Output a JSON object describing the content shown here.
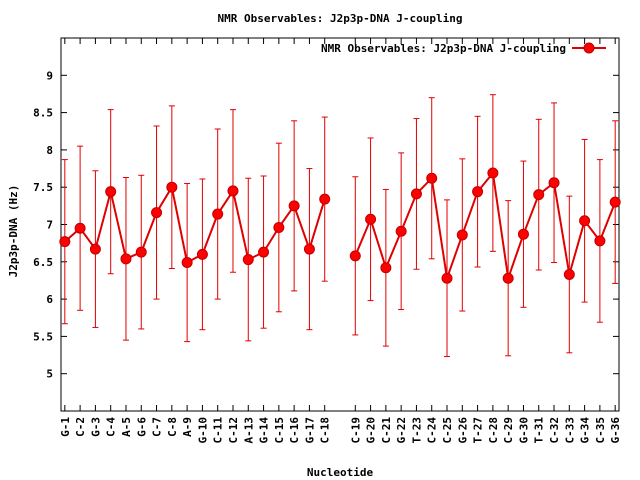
{
  "chart_data": {
    "type": "line",
    "title": "NMR Observables: J2p3p-DNA J-coupling",
    "xlabel": "Nucleotide",
    "ylabel": "J2p3p-DNA (Hz)",
    "ylim": [
      4.5,
      9.5
    ],
    "yticks": [
      "5",
      "5.5",
      "6",
      "6.5",
      "7",
      "7.5",
      "8",
      "8.5",
      "9"
    ],
    "grid": false,
    "legend_position": "top-right",
    "series": [
      {
        "name": "NMR Observables: J2p3p-DNA J-coupling",
        "color": "#ff0000",
        "points": [
          {
            "x": 1,
            "label": "G-1",
            "y": 6.77,
            "err": 1.1
          },
          {
            "x": 2,
            "label": "C-2",
            "y": 6.95,
            "err": 1.1
          },
          {
            "x": 3,
            "label": "G-3",
            "y": 6.67,
            "err": 1.05
          },
          {
            "x": 4,
            "label": "C-4",
            "y": 7.44,
            "err": 1.1
          },
          {
            "x": 5,
            "label": "A-5",
            "y": 6.54,
            "err": 1.09
          },
          {
            "x": 6,
            "label": "G-6",
            "y": 6.63,
            "err": 1.03
          },
          {
            "x": 7,
            "label": "C-7",
            "y": 7.16,
            "err": 1.16
          },
          {
            "x": 8,
            "label": "C-8",
            "y": 7.5,
            "err": 1.09
          },
          {
            "x": 9,
            "label": "A-9",
            "y": 6.49,
            "err": 1.06
          },
          {
            "x": 10,
            "label": "G-10",
            "y": 6.6,
            "err": 1.01
          },
          {
            "x": 11,
            "label": "C-11",
            "y": 7.14,
            "err": 1.14
          },
          {
            "x": 12,
            "label": "C-12",
            "y": 7.45,
            "err": 1.09
          },
          {
            "x": 13,
            "label": "A-13",
            "y": 6.53,
            "err": 1.09
          },
          {
            "x": 14,
            "label": "G-14",
            "y": 6.63,
            "err": 1.02
          },
          {
            "x": 15,
            "label": "C-15",
            "y": 6.96,
            "err": 1.13
          },
          {
            "x": 16,
            "label": "C-16",
            "y": 7.25,
            "err": 1.14
          },
          {
            "x": 17,
            "label": "G-17",
            "y": 6.67,
            "err": 1.08
          },
          {
            "x": 18,
            "label": "C-18",
            "y": 7.34,
            "err": 1.1
          },
          {
            "x": 20,
            "label": "C-19",
            "y": 6.58,
            "err": 1.06
          },
          {
            "x": 21,
            "label": "G-20",
            "y": 7.07,
            "err": 1.09
          },
          {
            "x": 22,
            "label": "C-21",
            "y": 6.42,
            "err": 1.05
          },
          {
            "x": 23,
            "label": "G-22",
            "y": 6.91,
            "err": 1.05
          },
          {
            "x": 24,
            "label": "T-23",
            "y": 7.41,
            "err": 1.01
          },
          {
            "x": 25,
            "label": "C-24",
            "y": 7.62,
            "err": 1.08
          },
          {
            "x": 26,
            "label": "C-25",
            "y": 6.28,
            "err": 1.05
          },
          {
            "x": 27,
            "label": "G-26",
            "y": 6.86,
            "err": 1.02
          },
          {
            "x": 28,
            "label": "T-27",
            "y": 7.44,
            "err": 1.01
          },
          {
            "x": 29,
            "label": "C-28",
            "y": 7.69,
            "err": 1.05
          },
          {
            "x": 30,
            "label": "C-29",
            "y": 6.28,
            "err": 1.04
          },
          {
            "x": 31,
            "label": "G-30",
            "y": 6.87,
            "err": 0.98
          },
          {
            "x": 32,
            "label": "T-31",
            "y": 7.4,
            "err": 1.01
          },
          {
            "x": 33,
            "label": "C-32",
            "y": 7.56,
            "err": 1.07
          },
          {
            "x": 34,
            "label": "C-33",
            "y": 6.33,
            "err": 1.05
          },
          {
            "x": 35,
            "label": "G-34",
            "y": 7.05,
            "err": 1.09
          },
          {
            "x": 36,
            "label": "C-35",
            "y": 6.78,
            "err": 1.09
          },
          {
            "x": 37,
            "label": "G-36",
            "y": 7.3,
            "err": 1.09
          }
        ]
      }
    ]
  }
}
